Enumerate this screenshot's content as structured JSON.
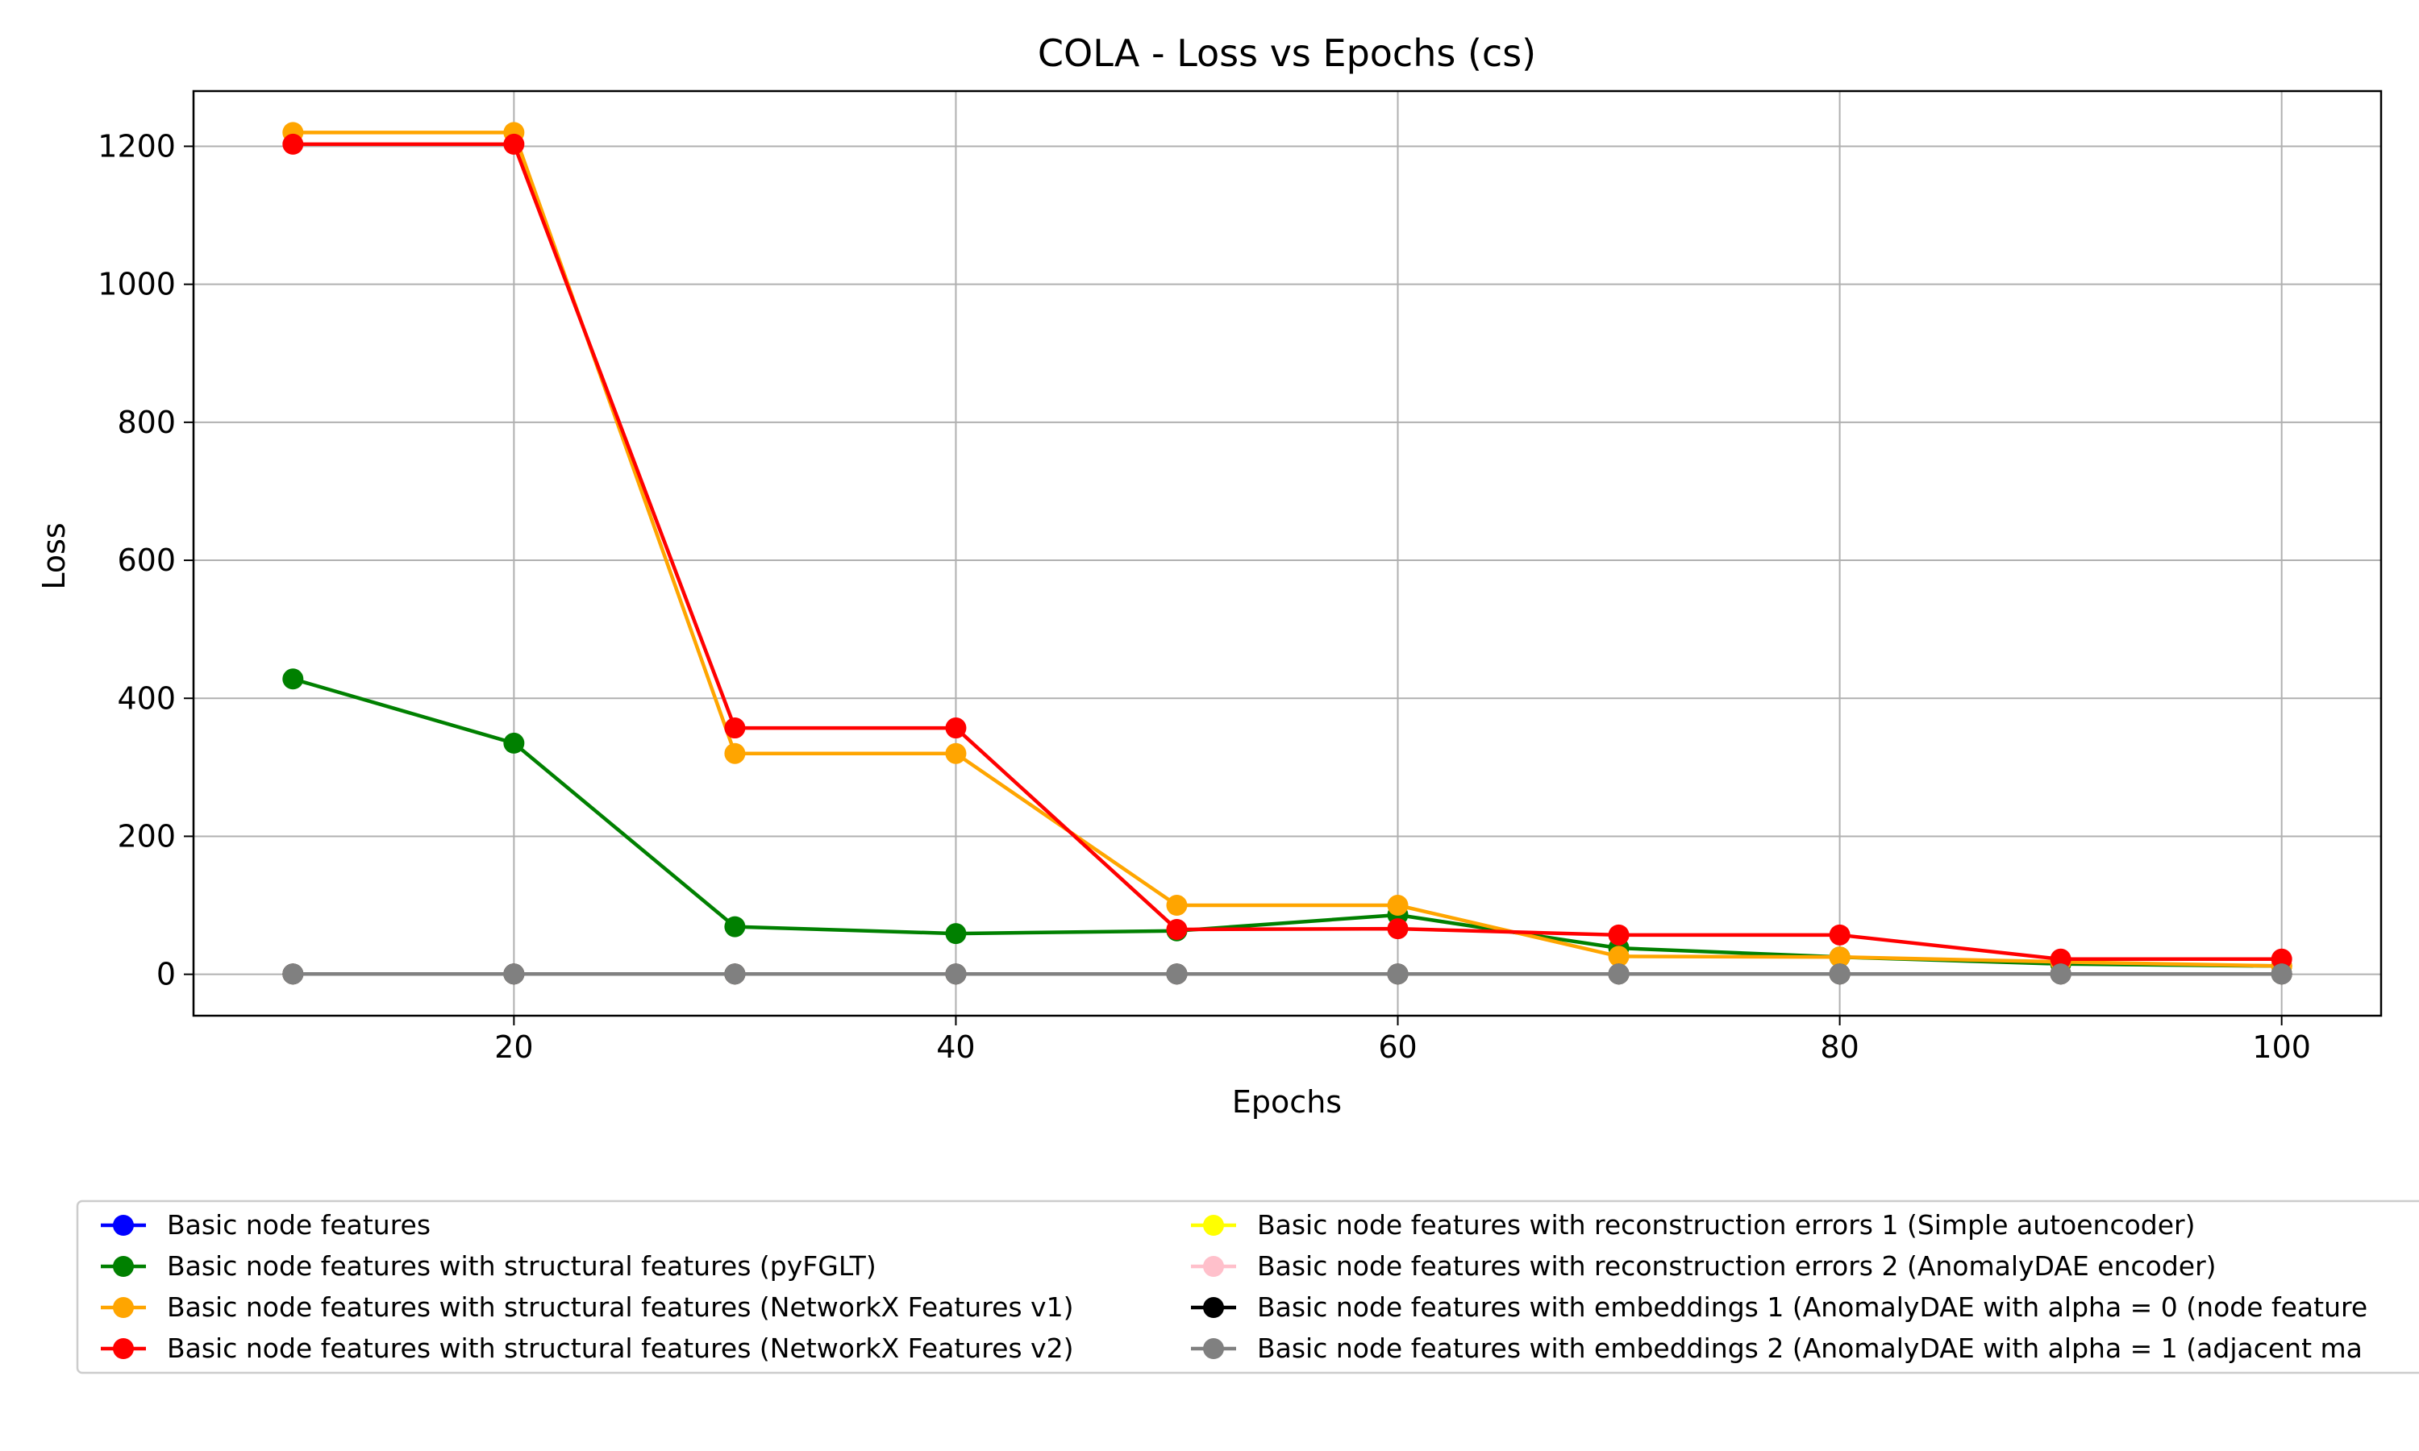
{
  "chart_data": {
    "type": "line",
    "title": "COLA - Loss vs Epochs (cs)",
    "xlabel": "Epochs",
    "ylabel": "Loss",
    "xlim": [
      5.5,
      104.5
    ],
    "ylim": [
      -60,
      1280
    ],
    "xticks": [
      20,
      40,
      60,
      80,
      100
    ],
    "yticks": [
      0,
      200,
      400,
      600,
      800,
      1000,
      1200
    ],
    "grid": true,
    "legend_position": "bottom",
    "x": [
      10,
      20,
      30,
      40,
      50,
      60,
      70,
      80,
      90,
      100
    ],
    "series": [
      {
        "name": "Basic node features",
        "color": "#0000ff",
        "values": [
          0.5,
          0.5,
          0.5,
          0.5,
          0.5,
          0.5,
          0.5,
          0.5,
          0.5,
          0.5
        ]
      },
      {
        "name": "Basic node features with structural features (pyFGLT)",
        "color": "#008000",
        "values": [
          428,
          335,
          69,
          59,
          63,
          86,
          38,
          25,
          15,
          12
        ]
      },
      {
        "name": "Basic node features with structural features (NetworkX Features v1)",
        "color": "#ffa500",
        "values": [
          1220,
          1220,
          320,
          320,
          100,
          100,
          26,
          25,
          18,
          12
        ]
      },
      {
        "name": "Basic node features with structural features (NetworkX Features v2)",
        "color": "#ff0000",
        "values": [
          1203,
          1203,
          357,
          357,
          65,
          66,
          57,
          57,
          22,
          22
        ]
      },
      {
        "name": "Basic node features with reconstruction errors 1 (Simple autoencoder)",
        "color": "#ffff00",
        "values": [
          0.5,
          0.5,
          0.5,
          0.5,
          0.5,
          0.5,
          0.5,
          0.5,
          0.5,
          0.5
        ]
      },
      {
        "name": "Basic node features with reconstruction errors 2 (AnomalyDAE encoder)",
        "color": "#ffc0cb",
        "values": [
          0.5,
          0.5,
          0.5,
          0.5,
          0.5,
          0.5,
          0.5,
          0.5,
          0.5,
          0.5
        ]
      },
      {
        "name": "Basic node features with embeddings 1 (AnomalyDAE with alpha = 0 (node feature",
        "color": "#000000",
        "values": [
          0.5,
          0.5,
          0.5,
          0.5,
          0.5,
          0.5,
          0.5,
          0.5,
          0.5,
          0.5
        ]
      },
      {
        "name": "Basic node features with embeddings 2 (AnomalyDAE with alpha = 1 (adjacent ma",
        "color": "#808080",
        "values": [
          0.5,
          0.5,
          0.5,
          0.5,
          0.5,
          0.5,
          0.5,
          0.5,
          0.5,
          0.5
        ]
      }
    ]
  }
}
